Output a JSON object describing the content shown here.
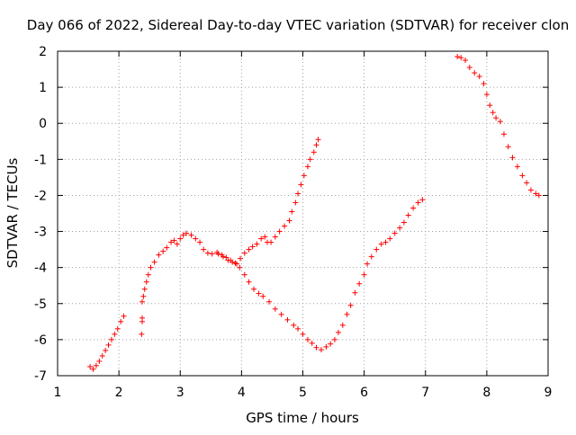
{
  "chart_data": {
    "type": "scatter",
    "title": "Day 066 of 2022, Sidereal Day-to-day VTEC variation (SDTVAR) for receiver clon",
    "xlabel": "GPS time / hours",
    "ylabel": "SDTVAR / TECUs",
    "xlim": [
      1,
      9
    ],
    "ylim": [
      -7,
      2
    ],
    "xticks": [
      1,
      2,
      3,
      4,
      5,
      6,
      7,
      8,
      9
    ],
    "yticks": [
      -7,
      -6,
      -5,
      -4,
      -3,
      -2,
      -1,
      0,
      1,
      2
    ],
    "grid": true,
    "marker": "+",
    "color": "#ff0000",
    "series": [
      {
        "points": [
          [
            1.53,
            -6.75
          ],
          [
            1.58,
            -6.82
          ],
          [
            1.63,
            -6.72
          ],
          [
            1.68,
            -6.6
          ],
          [
            1.73,
            -6.45
          ],
          [
            1.78,
            -6.3
          ],
          [
            1.83,
            -6.15
          ],
          [
            1.88,
            -6.0
          ],
          [
            1.93,
            -5.85
          ],
          [
            1.98,
            -5.7
          ],
          [
            2.03,
            -5.5
          ],
          [
            2.08,
            -5.35
          ],
          [
            2.37,
            -5.85
          ],
          [
            2.38,
            -5.5
          ],
          [
            2.38,
            -5.4
          ],
          [
            2.38,
            -4.95
          ],
          [
            2.4,
            -4.8
          ],
          [
            2.42,
            -4.6
          ],
          [
            2.45,
            -4.4
          ],
          [
            2.48,
            -4.2
          ],
          [
            2.52,
            -4.0
          ],
          [
            2.58,
            -3.85
          ],
          [
            2.65,
            -3.65
          ],
          [
            2.72,
            -3.55
          ],
          [
            2.78,
            -3.45
          ],
          [
            2.85,
            -3.3
          ],
          [
            2.9,
            -3.25
          ],
          [
            2.95,
            -3.35
          ],
          [
            3.0,
            -3.2
          ],
          [
            3.05,
            -3.1
          ],
          [
            3.1,
            -3.05
          ],
          [
            3.18,
            -3.1
          ],
          [
            3.25,
            -3.2
          ],
          [
            3.32,
            -3.3
          ],
          [
            3.38,
            -3.5
          ],
          [
            3.45,
            -3.6
          ],
          [
            3.52,
            -3.62
          ],
          [
            3.6,
            -3.58
          ],
          [
            3.68,
            -3.65
          ],
          [
            3.75,
            -3.72
          ],
          [
            3.82,
            -3.8
          ],
          [
            3.9,
            -3.88
          ],
          [
            3.97,
            -4.0
          ],
          [
            4.05,
            -4.2
          ],
          [
            4.12,
            -4.4
          ],
          [
            4.2,
            -4.6
          ],
          [
            4.28,
            -4.72
          ],
          [
            4.35,
            -4.8
          ],
          [
            4.45,
            -4.95
          ],
          [
            4.55,
            -5.15
          ],
          [
            4.65,
            -5.3
          ],
          [
            4.75,
            -5.45
          ],
          [
            4.85,
            -5.6
          ],
          [
            4.92,
            -5.7
          ],
          [
            5.0,
            -5.85
          ],
          [
            5.08,
            -6.0
          ],
          [
            5.15,
            -6.1
          ],
          [
            5.22,
            -6.22
          ],
          [
            5.3,
            -6.28
          ],
          [
            5.38,
            -6.2
          ],
          [
            5.45,
            -6.12
          ],
          [
            5.52,
            -6.0
          ],
          [
            5.58,
            -5.8
          ],
          [
            5.65,
            -5.6
          ],
          [
            5.72,
            -5.3
          ],
          [
            5.78,
            -5.05
          ],
          [
            5.85,
            -4.7
          ],
          [
            5.92,
            -4.45
          ],
          [
            6.0,
            -4.2
          ],
          [
            6.05,
            -3.9
          ],
          [
            6.12,
            -3.7
          ],
          [
            6.2,
            -3.5
          ],
          [
            6.28,
            -3.35
          ],
          [
            6.35,
            -3.3
          ],
          [
            6.42,
            -3.2
          ],
          [
            6.5,
            -3.05
          ],
          [
            6.58,
            -2.9
          ],
          [
            6.65,
            -2.75
          ],
          [
            6.72,
            -2.55
          ],
          [
            6.8,
            -2.35
          ],
          [
            6.88,
            -2.2
          ],
          [
            6.95,
            -2.12
          ],
          [
            7.52,
            1.85
          ],
          [
            7.58,
            1.82
          ],
          [
            7.65,
            1.75
          ],
          [
            7.72,
            1.55
          ],
          [
            7.8,
            1.4
          ],
          [
            7.88,
            1.3
          ],
          [
            7.95,
            1.1
          ],
          [
            8.0,
            0.8
          ],
          [
            8.05,
            0.5
          ],
          [
            8.1,
            0.3
          ],
          [
            8.15,
            0.15
          ],
          [
            8.22,
            0.05
          ],
          [
            8.28,
            -0.3
          ],
          [
            8.35,
            -0.65
          ],
          [
            8.42,
            -0.95
          ],
          [
            8.5,
            -1.2
          ],
          [
            8.58,
            -1.45
          ],
          [
            8.65,
            -1.65
          ],
          [
            8.72,
            -1.85
          ],
          [
            8.8,
            -1.95
          ],
          [
            8.85,
            -2.0
          ]
        ]
      },
      {
        "points": [
          [
            3.62,
            -3.62
          ],
          [
            3.7,
            -3.7
          ],
          [
            3.78,
            -3.8
          ],
          [
            3.85,
            -3.85
          ],
          [
            3.92,
            -3.9
          ],
          [
            3.98,
            -3.75
          ],
          [
            4.05,
            -3.6
          ],
          [
            4.12,
            -3.5
          ],
          [
            4.18,
            -3.42
          ],
          [
            4.25,
            -3.35
          ],
          [
            4.32,
            -3.2
          ],
          [
            4.38,
            -3.15
          ],
          [
            4.42,
            -3.3
          ],
          [
            4.48,
            -3.3
          ],
          [
            4.55,
            -3.15
          ],
          [
            4.62,
            -3.0
          ],
          [
            4.7,
            -2.85
          ],
          [
            4.78,
            -2.7
          ],
          [
            4.82,
            -2.45
          ],
          [
            4.88,
            -2.2
          ],
          [
            4.92,
            -1.95
          ],
          [
            4.97,
            -1.7
          ],
          [
            5.02,
            -1.45
          ],
          [
            5.08,
            -1.2
          ],
          [
            5.12,
            -1.0
          ],
          [
            5.18,
            -0.8
          ],
          [
            5.22,
            -0.6
          ],
          [
            5.25,
            -0.45
          ]
        ]
      }
    ]
  }
}
